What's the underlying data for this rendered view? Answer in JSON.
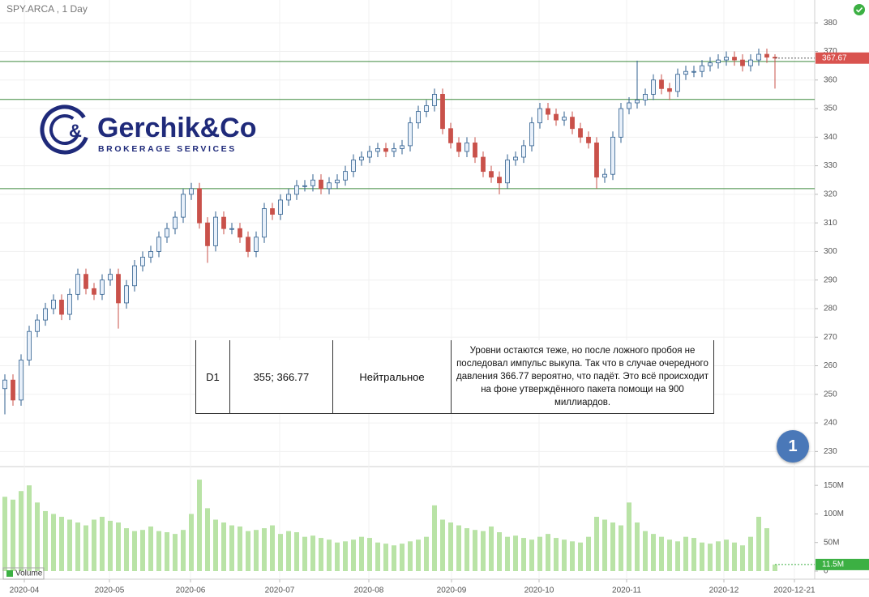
{
  "chart_data": [
    {
      "type": "candlestick",
      "title": "SPY.ARCA , 1 Day",
      "open": [
        252,
        255,
        248,
        262,
        272,
        276,
        280,
        283,
        278,
        285,
        292,
        287,
        285,
        290,
        292,
        282,
        288,
        295,
        298,
        300,
        305,
        308,
        312,
        320,
        322,
        310,
        302,
        312,
        308,
        308,
        305,
        300,
        305,
        315,
        313,
        318,
        320,
        323,
        323,
        325,
        322,
        324,
        325,
        328,
        332,
        333,
        335,
        336,
        335,
        336,
        337,
        345,
        349,
        351,
        355,
        343,
        338,
        335,
        338,
        333,
        328,
        326,
        324,
        332,
        333,
        337,
        345,
        350,
        348,
        346,
        347,
        343,
        340,
        338,
        326,
        327,
        340,
        350,
        352,
        353,
        355,
        360,
        357,
        356,
        362,
        363,
        363,
        365,
        366,
        367,
        368,
        367,
        365,
        367,
        369,
        368
      ],
      "high": [
        257,
        257,
        264,
        274,
        278,
        282,
        285,
        285,
        287,
        294,
        294,
        289,
        292,
        294,
        294,
        290,
        297,
        300,
        302,
        307,
        310,
        314,
        322,
        324,
        324,
        312,
        314,
        314,
        310,
        310,
        307,
        307,
        317,
        317,
        320,
        322,
        325,
        325,
        327,
        327,
        326,
        327,
        330,
        334,
        335,
        337,
        338,
        338,
        338,
        339,
        347,
        351,
        353,
        357,
        357,
        345,
        340,
        340,
        340,
        335,
        330,
        328,
        334,
        335,
        339,
        347,
        352,
        352,
        350,
        349,
        349,
        345,
        342,
        340,
        329,
        342,
        352,
        354,
        366.77,
        357,
        362,
        362,
        359,
        364,
        365,
        365,
        367,
        368,
        369,
        370,
        370,
        369,
        369,
        371,
        371,
        369
      ],
      "low": [
        243,
        246,
        246,
        260,
        270,
        274,
        278,
        276,
        276,
        283,
        285,
        283,
        283,
        288,
        273,
        280,
        286,
        293,
        296,
        298,
        303,
        306,
        310,
        318,
        308,
        296,
        300,
        306,
        306,
        303,
        298,
        298,
        303,
        311,
        311,
        316,
        318,
        321,
        321,
        320,
        320,
        322,
        323,
        326,
        330,
        331,
        333,
        333,
        333,
        334,
        335,
        343,
        347,
        349,
        341,
        336,
        333,
        333,
        331,
        326,
        324,
        320,
        322,
        330,
        331,
        335,
        343,
        346,
        344,
        344,
        341,
        338,
        336,
        322,
        324,
        325,
        338,
        348,
        350,
        351,
        353,
        355,
        353,
        354,
        360,
        361,
        361,
        363,
        364,
        365,
        365,
        363,
        363,
        365,
        366,
        357
      ],
      "close": [
        255,
        248,
        262,
        272,
        276,
        280,
        283,
        278,
        285,
        292,
        287,
        285,
        290,
        292,
        282,
        288,
        295,
        298,
        300,
        305,
        308,
        312,
        320,
        322,
        310,
        302,
        312,
        308,
        308,
        305,
        300,
        305,
        315,
        313,
        318,
        320,
        323,
        323,
        325,
        322,
        324,
        325,
        328,
        332,
        333,
        335,
        336,
        335,
        336,
        337,
        345,
        349,
        351,
        355,
        343,
        338,
        335,
        338,
        333,
        328,
        326,
        324,
        332,
        333,
        337,
        345,
        350,
        348,
        346,
        347,
        343,
        340,
        338,
        326,
        327,
        340,
        350,
        352,
        353,
        355,
        360,
        357,
        356,
        362,
        363,
        363,
        365,
        366,
        367,
        368,
        367,
        365,
        367,
        369,
        368,
        367.67
      ],
      "up_color": "#2f5f8f",
      "down_color": "#c9514a",
      "ylim": [
        225,
        388
      ],
      "yticks": [
        230,
        240,
        250,
        260,
        270,
        280,
        290,
        300,
        310,
        320,
        330,
        340,
        350,
        360,
        370,
        380
      ],
      "xlim": [
        -0.6,
        99.9
      ],
      "xticks": [
        {
          "value": 2.4,
          "label": "2020-04"
        },
        {
          "value": 12.9,
          "label": "2020-05"
        },
        {
          "value": 22.9,
          "label": "2020-06"
        },
        {
          "value": 33.9,
          "label": "2020-07"
        },
        {
          "value": 44.9,
          "label": "2020-08"
        },
        {
          "value": 55.1,
          "label": "2020-09"
        },
        {
          "value": 65.9,
          "label": "2020-10"
        },
        {
          "value": 76.7,
          "label": "2020-11"
        },
        {
          "value": 88.7,
          "label": "2020-12"
        },
        {
          "value": 97.4,
          "label": "2020-12-21"
        }
      ],
      "levels": [
        366.5,
        353.2,
        322
      ],
      "level_color": "#3f8a3f",
      "current": 367.67,
      "current_color": "#d9534f",
      "grid": true
    },
    {
      "type": "bar",
      "series": [
        {
          "name": "Volume",
          "color": "#b9e3a6",
          "values": [
            130,
            125,
            140,
            150,
            120,
            105,
            100,
            95,
            90,
            85,
            80,
            90,
            95,
            88,
            85,
            75,
            70,
            72,
            78,
            70,
            68,
            65,
            72,
            100,
            160,
            110,
            90,
            85,
            80,
            78,
            70,
            72,
            75,
            80,
            65,
            70,
            68,
            60,
            62,
            58,
            55,
            50,
            52,
            55,
            60,
            58,
            50,
            48,
            45,
            48,
            52,
            55,
            60,
            115,
            90,
            85,
            80,
            75,
            72,
            70,
            78,
            68,
            60,
            62,
            58,
            55,
            60,
            65,
            58,
            55,
            52,
            50,
            60,
            95,
            90,
            85,
            80,
            120,
            85,
            70,
            65,
            60,
            55,
            52,
            60,
            58,
            50,
            48,
            52,
            55,
            50,
            45,
            60,
            95,
            75,
            11.5
          ]
        }
      ],
      "ylim": [
        0,
        180
      ],
      "yticks": [
        0,
        {
          "value": 50,
          "label": "50M"
        },
        {
          "value": 100,
          "label": "100M"
        },
        {
          "value": 150,
          "label": "150M"
        }
      ],
      "current": {
        "value": 11.5,
        "label": "11.5M"
      },
      "current_color": "#3cb043"
    }
  ],
  "logo": {
    "name": "Gerchik&Co",
    "tagline": "BROKERAGE SERVICES"
  },
  "table": {
    "rows": [
      [
        "D1",
        "355; 366.77",
        "Нейтральное",
        "Уровни остаются теже, но после ложного пробоя не последовал импульс выкупа. Так что в случае очередного давления 366.77 вероятно, что падёт. Это всё происходит на фоне утверждённого пакета помощи на 900 миллиардов."
      ]
    ]
  },
  "badge": "1"
}
